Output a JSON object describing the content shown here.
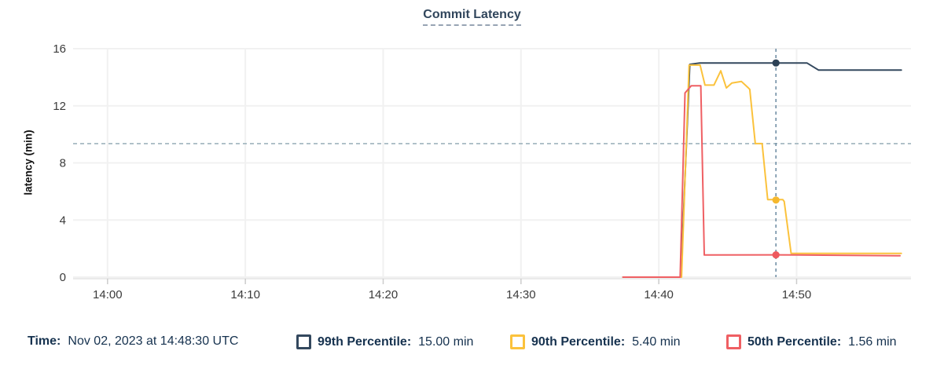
{
  "title": "Commit Latency",
  "y_axis": {
    "label": "latency (min)",
    "ticks": [
      16,
      12,
      8,
      4,
      0
    ]
  },
  "x_axis": {
    "ticks": [
      {
        "label": "14:00",
        "t": 0
      },
      {
        "label": "14:10",
        "t": 10
      },
      {
        "label": "14:20",
        "t": 20
      },
      {
        "label": "14:30",
        "t": 30
      },
      {
        "label": "14:40",
        "t": 40
      },
      {
        "label": "14:50",
        "t": 50
      }
    ]
  },
  "readout": {
    "time_label": "Time:",
    "time_value": "Nov 02, 2023 at 14:48:30 UTC",
    "series": [
      {
        "label": "99th Percentile:",
        "value": "15.00 min",
        "color": "#33485e"
      },
      {
        "label": "90th Percentile:",
        "value": "5.40 min",
        "color": "#fbc23c"
      },
      {
        "label": "50th Percentile:",
        "value": "1.56 min",
        "color": "#ef5f63"
      }
    ]
  },
  "chart_data": {
    "type": "line",
    "title": "Commit Latency",
    "ylabel": "latency (min)",
    "ylim": [
      0,
      16
    ],
    "x_unit": "minutes after 14:00",
    "xlim": [
      -2.5,
      58.3
    ],
    "grid": true,
    "series": [
      {
        "name": "99th Percentile",
        "color": "#33485e",
        "points": [
          [
            37.4,
            0
          ],
          [
            41.6,
            0
          ],
          [
            42.25,
            14.9
          ],
          [
            43.0,
            15.0
          ],
          [
            50.75,
            15.0
          ],
          [
            51.6,
            14.5
          ],
          [
            57.6,
            14.5
          ]
        ]
      },
      {
        "name": "90th Percentile",
        "color": "#fbc23c",
        "points": [
          [
            37.4,
            0
          ],
          [
            41.65,
            0
          ],
          [
            42.2,
            14.85
          ],
          [
            43.0,
            14.85
          ],
          [
            43.35,
            13.45
          ],
          [
            44.0,
            13.45
          ],
          [
            44.5,
            14.45
          ],
          [
            44.9,
            13.25
          ],
          [
            45.3,
            13.6
          ],
          [
            46.0,
            13.7
          ],
          [
            46.45,
            13.3
          ],
          [
            46.6,
            13.15
          ],
          [
            47.0,
            9.35
          ],
          [
            47.5,
            9.35
          ],
          [
            47.9,
            5.43
          ],
          [
            49.0,
            5.43
          ],
          [
            49.1,
            5.3
          ],
          [
            49.6,
            1.66
          ],
          [
            57.6,
            1.66
          ]
        ]
      },
      {
        "name": "50th Percentile",
        "color": "#ef5f63",
        "points": [
          [
            37.4,
            0
          ],
          [
            41.55,
            0
          ],
          [
            41.9,
            12.9
          ],
          [
            42.35,
            13.4
          ],
          [
            43.05,
            13.4
          ],
          [
            43.3,
            1.55
          ],
          [
            48.5,
            1.56
          ],
          [
            57.5,
            1.5
          ]
        ]
      }
    ],
    "threshold_line": {
      "value": 9.35,
      "style": "dashed",
      "color": "#9fb4bd"
    },
    "cursor": {
      "t": 48.5,
      "time_label": "14:48:30",
      "color": "#7391a6",
      "dots": [
        {
          "series": "99th Percentile",
          "t": 48.5,
          "value": 15.0,
          "color": "#2c4156"
        },
        {
          "series": "90th Percentile",
          "t": 48.5,
          "value": 5.4,
          "color": "#f5b82e"
        },
        {
          "series": "50th Percentile",
          "t": 48.5,
          "value": 1.56,
          "color": "#ee5a5f"
        }
      ]
    }
  }
}
